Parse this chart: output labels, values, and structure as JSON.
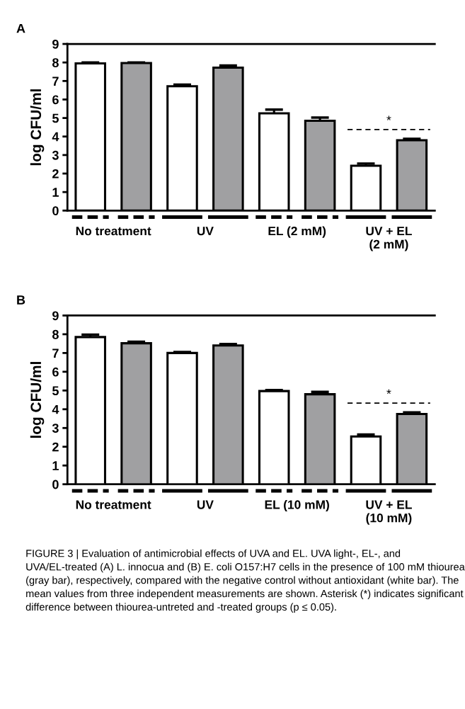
{
  "chart_data": [
    {
      "type": "bar",
      "title": "A",
      "ylabel": "log CFU/ml",
      "categories": [
        "No treatment",
        "UV",
        "EL (2 mM)",
        "UV + EL\n(2 mM)"
      ],
      "series": [
        {
          "color": "#ffffff",
          "values": [
            7.95,
            6.72,
            5.25,
            2.42
          ],
          "errors": [
            0.05,
            0.08,
            0.2,
            0.12
          ]
        },
        {
          "color": "#a0a0a2",
          "values": [
            7.97,
            7.72,
            4.85,
            3.8
          ],
          "errors": [
            0.03,
            0.12,
            0.17,
            0.08
          ]
        }
      ],
      "ylim": [
        0,
        9
      ],
      "yticks": [
        0,
        1,
        2,
        3,
        4,
        5,
        6,
        7,
        8,
        9
      ],
      "grid": false,
      "legend": false,
      "annotations": [
        "*"
      ]
    },
    {
      "type": "bar",
      "title": "B",
      "ylabel": "log CFU/ml",
      "categories": [
        "No treatment",
        "UV",
        "EL (10 mM)",
        "UV + EL\n(10 mM)"
      ],
      "series": [
        {
          "color": "#ffffff",
          "values": [
            7.85,
            7.0,
            4.97,
            2.55
          ],
          "errors": [
            0.13,
            0.05,
            0.05,
            0.1
          ]
        },
        {
          "color": "#a0a0a2",
          "values": [
            7.52,
            7.4,
            4.8,
            3.75
          ],
          "errors": [
            0.08,
            0.08,
            0.13,
            0.08
          ]
        }
      ],
      "ylim": [
        0,
        9
      ],
      "yticks": [
        0,
        1,
        2,
        3,
        4,
        5,
        6,
        7,
        8,
        9
      ],
      "grid": false,
      "legend": false,
      "annotations": [
        "*",
        "FIGURE 3 | Evaluation of antimicrobial effects of UVA and EL. UVA light-, EL-, and UVA/EL-treated (A) L. innocua and (B) E. coli O157:H7 cells in the presence of 100 mM thiourea (gray bar), respectively, compared with the negative control without antioxidant (white bar). The mean values from three independent measurements are shown. Asterisk (*) indicates significant difference between thiourea-untreted and -treated groups (p ≤ 0.05)."
      ]
    }
  ]
}
